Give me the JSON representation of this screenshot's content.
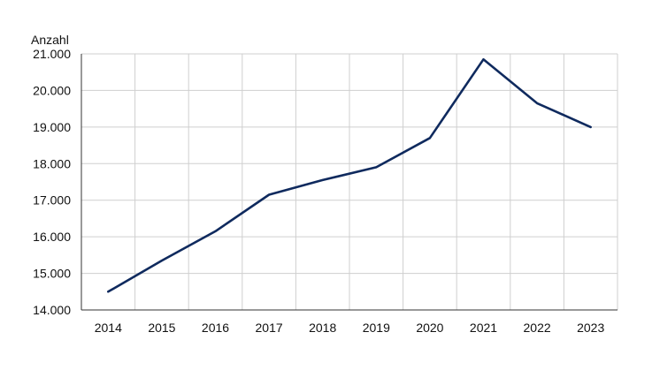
{
  "chart_data": {
    "type": "line",
    "title": "",
    "xlabel": "",
    "ylabel": "Anzahl",
    "categories": [
      "2014",
      "2015",
      "2016",
      "2017",
      "2018",
      "2019",
      "2020",
      "2021",
      "2022",
      "2023"
    ],
    "series": [
      {
        "values": [
          14500,
          15350,
          16150,
          17150,
          17550,
          17900,
          18700,
          20850,
          19650,
          19000
        ],
        "color": "#0f2a5e"
      }
    ],
    "ylim": [
      14000,
      21000
    ],
    "yticks": [
      14000,
      15000,
      16000,
      17000,
      18000,
      19000,
      20000,
      21000
    ],
    "ytick_labels": [
      "14.000",
      "15.000",
      "16.000",
      "17.000",
      "18.000",
      "19.000",
      "20.000",
      "21.000"
    ],
    "grid": true,
    "legend": "none"
  }
}
